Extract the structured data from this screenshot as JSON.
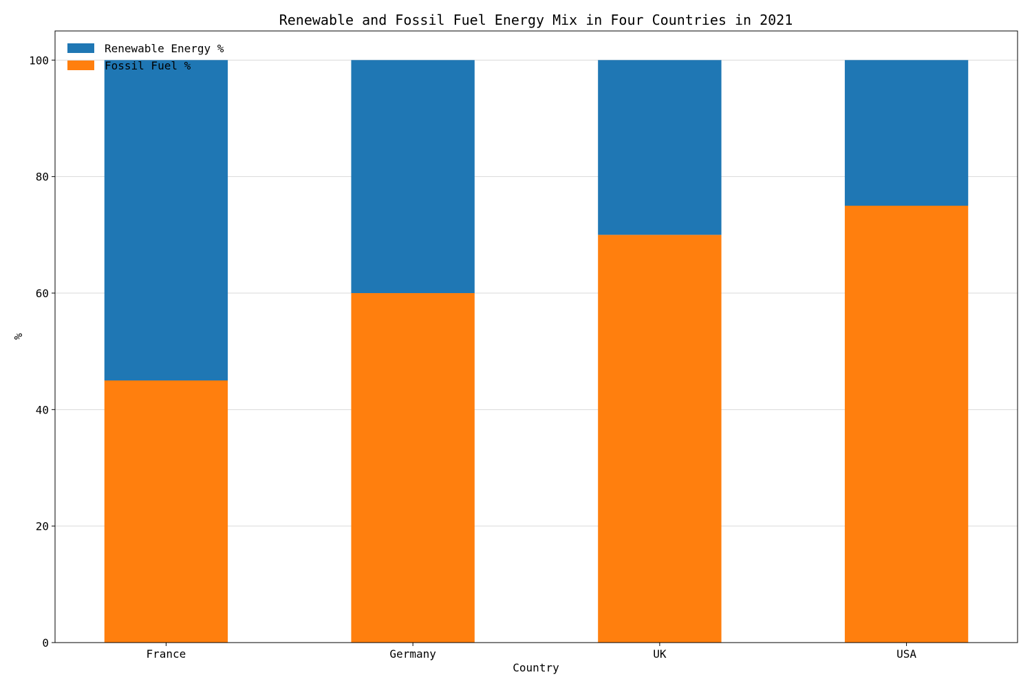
{
  "chart_data": {
    "type": "bar",
    "stacked": true,
    "title": "Renewable and Fossil Fuel Energy Mix in Four Countries in 2021",
    "xlabel": "Country",
    "ylabel": "%",
    "categories": [
      "France",
      "Germany",
      "UK",
      "USA"
    ],
    "series": [
      {
        "name": "Fossil Fuel %",
        "values": [
          45,
          60,
          70,
          75
        ],
        "color": "#ff7f0e"
      },
      {
        "name": "Renewable Energy %",
        "values": [
          55,
          40,
          30,
          25
        ],
        "color": "#1f77b4"
      }
    ],
    "legend_order": [
      "Renewable Energy %",
      "Fossil Fuel %"
    ],
    "ylim": [
      0,
      105
    ],
    "yticks": [
      0,
      20,
      40,
      60,
      80,
      100
    ],
    "grid": "y",
    "legend_position": "top-left"
  }
}
